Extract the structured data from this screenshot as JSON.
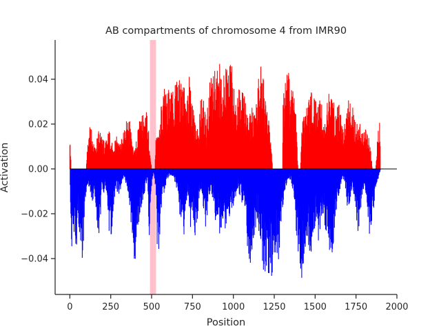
{
  "chart_data": {
    "type": "bar",
    "title": "AB compartments of chromosome 4 from IMR90",
    "xlabel": "Position",
    "ylabel": "Activation",
    "xlim": [
      -90,
      2000
    ],
    "ylim": [
      -0.056,
      0.0575
    ],
    "x_ticks": [
      0,
      250,
      500,
      750,
      1000,
      1250,
      1500,
      1750,
      2000
    ],
    "y_ticks": [
      -0.04,
      -0.02,
      0.0,
      0.02,
      0.04
    ],
    "y_tick_labels": [
      "−0.04",
      "−0.02",
      "0.00",
      "0.02",
      "0.04"
    ],
    "grid": false,
    "legend": "none",
    "highlight_band": {
      "x_start": 490,
      "x_end": 527,
      "color": "#ffc0cb"
    },
    "zero_line": true,
    "series": [
      {
        "sign": "positive",
        "color": "#ff0000"
      },
      {
        "sign": "negative",
        "color": "#0000ff"
      }
    ],
    "profile_positive": [
      [
        0,
        0.019
      ],
      [
        8,
        0.0
      ],
      [
        100,
        0.0
      ],
      [
        105,
        0.009
      ],
      [
        115,
        0.013
      ],
      [
        125,
        0.021
      ],
      [
        140,
        0.016
      ],
      [
        160,
        0.012
      ],
      [
        180,
        0.02
      ],
      [
        200,
        0.014
      ],
      [
        220,
        0.012
      ],
      [
        235,
        0.018
      ],
      [
        250,
        0.015
      ],
      [
        265,
        0.009
      ],
      [
        280,
        0.016
      ],
      [
        295,
        0.014
      ],
      [
        310,
        0.011
      ],
      [
        325,
        0.018
      ],
      [
        340,
        0.02
      ],
      [
        360,
        0.025
      ],
      [
        380,
        0.013
      ],
      [
        395,
        0.008
      ],
      [
        410,
        0.014
      ],
      [
        425,
        0.023
      ],
      [
        445,
        0.025
      ],
      [
        460,
        0.029
      ],
      [
        475,
        0.024
      ],
      [
        488,
        0.012
      ],
      [
        500,
        0.0
      ],
      [
        520,
        0.0
      ],
      [
        530,
        0.023
      ],
      [
        545,
        0.015
      ],
      [
        560,
        0.03
      ],
      [
        580,
        0.039
      ],
      [
        600,
        0.036
      ],
      [
        620,
        0.034
      ],
      [
        640,
        0.041
      ],
      [
        660,
        0.042
      ],
      [
        680,
        0.04
      ],
      [
        700,
        0.037
      ],
      [
        715,
        0.032
      ],
      [
        730,
        0.043
      ],
      [
        745,
        0.03
      ],
      [
        760,
        0.025
      ],
      [
        775,
        0.02
      ],
      [
        790,
        0.024
      ],
      [
        805,
        0.035
      ],
      [
        820,
        0.03
      ],
      [
        835,
        0.02
      ],
      [
        850,
        0.036
      ],
      [
        865,
        0.045
      ],
      [
        880,
        0.043
      ],
      [
        895,
        0.047
      ],
      [
        910,
        0.05
      ],
      [
        925,
        0.046
      ],
      [
        940,
        0.044
      ],
      [
        955,
        0.051
      ],
      [
        970,
        0.045
      ],
      [
        985,
        0.052
      ],
      [
        1000,
        0.043
      ],
      [
        1015,
        0.032
      ],
      [
        1030,
        0.04
      ],
      [
        1045,
        0.034
      ],
      [
        1060,
        0.036
      ],
      [
        1075,
        0.03
      ],
      [
        1090,
        0.023
      ],
      [
        1105,
        0.026
      ],
      [
        1120,
        0.03
      ],
      [
        1135,
        0.026
      ],
      [
        1150,
        0.038
      ],
      [
        1165,
        0.048
      ],
      [
        1180,
        0.046
      ],
      [
        1195,
        0.034
      ],
      [
        1210,
        0.025
      ],
      [
        1225,
        0.02
      ],
      [
        1240,
        0.0
      ],
      [
        1300,
        0.0
      ],
      [
        1305,
        0.039
      ],
      [
        1320,
        0.042
      ],
      [
        1335,
        0.044
      ],
      [
        1350,
        0.038
      ],
      [
        1365,
        0.036
      ],
      [
        1380,
        0.03
      ],
      [
        1395,
        0.0
      ],
      [
        1410,
        0.0
      ],
      [
        1420,
        0.026
      ],
      [
        1435,
        0.023
      ],
      [
        1450,
        0.028
      ],
      [
        1465,
        0.032
      ],
      [
        1480,
        0.035
      ],
      [
        1495,
        0.033
      ],
      [
        1510,
        0.03
      ],
      [
        1525,
        0.036
      ],
      [
        1540,
        0.033
      ],
      [
        1555,
        0.02
      ],
      [
        1570,
        0.028
      ],
      [
        1585,
        0.034
      ],
      [
        1600,
        0.033
      ],
      [
        1615,
        0.03
      ],
      [
        1630,
        0.026
      ],
      [
        1645,
        0.032
      ],
      [
        1660,
        0.025
      ],
      [
        1675,
        0.02
      ],
      [
        1690,
        0.027
      ],
      [
        1705,
        0.031
      ],
      [
        1720,
        0.03
      ],
      [
        1735,
        0.026
      ],
      [
        1750,
        0.023
      ],
      [
        1765,
        0.02
      ],
      [
        1780,
        0.022
      ],
      [
        1795,
        0.016
      ],
      [
        1810,
        0.018
      ],
      [
        1825,
        0.015
      ],
      [
        1840,
        0.009
      ],
      [
        1850,
        0.0
      ],
      [
        1870,
        0.0
      ],
      [
        1880,
        0.015
      ],
      [
        1890,
        0.024
      ],
      [
        1895,
        0.026
      ],
      [
        1900,
        0.0
      ]
    ],
    "profile_negative": [
      [
        0,
        0.0
      ],
      [
        5,
        -0.02
      ],
      [
        10,
        -0.038
      ],
      [
        20,
        -0.039
      ],
      [
        30,
        -0.032
      ],
      [
        40,
        -0.038
      ],
      [
        50,
        -0.022
      ],
      [
        60,
        -0.033
      ],
      [
        70,
        -0.038
      ],
      [
        80,
        -0.043
      ],
      [
        90,
        -0.018
      ],
      [
        100,
        -0.012
      ],
      [
        110,
        -0.009
      ],
      [
        120,
        -0.008
      ],
      [
        140,
        -0.018
      ],
      [
        155,
        -0.013
      ],
      [
        165,
        -0.022
      ],
      [
        175,
        -0.032
      ],
      [
        185,
        -0.028
      ],
      [
        195,
        -0.008
      ],
      [
        205,
        -0.012
      ],
      [
        215,
        -0.009
      ],
      [
        225,
        -0.014
      ],
      [
        240,
        -0.033
      ],
      [
        255,
        -0.03
      ],
      [
        270,
        -0.015
      ],
      [
        285,
        -0.01
      ],
      [
        300,
        -0.012
      ],
      [
        315,
        -0.008
      ],
      [
        330,
        -0.003
      ],
      [
        345,
        -0.008
      ],
      [
        360,
        -0.012
      ],
      [
        375,
        -0.026
      ],
      [
        385,
        -0.033
      ],
      [
        395,
        -0.044
      ],
      [
        405,
        -0.042
      ],
      [
        415,
        -0.029
      ],
      [
        425,
        -0.025
      ],
      [
        435,
        -0.02
      ],
      [
        445,
        -0.016
      ],
      [
        455,
        -0.012
      ],
      [
        465,
        -0.008
      ],
      [
        475,
        -0.003
      ],
      [
        485,
        -0.033
      ],
      [
        495,
        -0.012
      ],
      [
        505,
        -0.004
      ],
      [
        515,
        -0.002
      ],
      [
        525,
        -0.01
      ],
      [
        535,
        -0.038
      ],
      [
        545,
        -0.039
      ],
      [
        555,
        -0.023
      ],
      [
        570,
        -0.013
      ],
      [
        590,
        -0.006
      ],
      [
        610,
        -0.003
      ],
      [
        630,
        -0.004
      ],
      [
        650,
        -0.008
      ],
      [
        665,
        -0.012
      ],
      [
        680,
        -0.031
      ],
      [
        695,
        -0.036
      ],
      [
        710,
        -0.02
      ],
      [
        725,
        -0.012
      ],
      [
        740,
        -0.03
      ],
      [
        755,
        -0.025
      ],
      [
        770,
        -0.032
      ],
      [
        785,
        -0.018
      ],
      [
        800,
        -0.01
      ],
      [
        815,
        -0.016
      ],
      [
        830,
        -0.028
      ],
      [
        845,
        -0.018
      ],
      [
        860,
        -0.009
      ],
      [
        875,
        -0.015
      ],
      [
        890,
        -0.024
      ],
      [
        905,
        -0.02
      ],
      [
        920,
        -0.032
      ],
      [
        935,
        -0.028
      ],
      [
        950,
        -0.03
      ],
      [
        965,
        -0.027
      ],
      [
        980,
        -0.022
      ],
      [
        995,
        -0.018
      ],
      [
        1010,
        -0.014
      ],
      [
        1025,
        -0.009
      ],
      [
        1040,
        -0.012
      ],
      [
        1055,
        -0.016
      ],
      [
        1070,
        -0.02
      ],
      [
        1085,
        -0.035
      ],
      [
        1100,
        -0.043
      ],
      [
        1115,
        -0.04
      ],
      [
        1130,
        -0.03
      ],
      [
        1145,
        -0.022
      ],
      [
        1160,
        -0.03
      ],
      [
        1175,
        -0.042
      ],
      [
        1190,
        -0.049
      ],
      [
        1205,
        -0.045
      ],
      [
        1220,
        -0.048
      ],
      [
        1235,
        -0.05
      ],
      [
        1250,
        -0.042
      ],
      [
        1265,
        -0.04
      ],
      [
        1280,
        -0.043
      ],
      [
        1295,
        -0.025
      ],
      [
        1310,
        -0.012
      ],
      [
        1325,
        -0.008
      ],
      [
        1340,
        -0.004
      ],
      [
        1355,
        -0.006
      ],
      [
        1370,
        -0.015
      ],
      [
        1385,
        -0.03
      ],
      [
        1400,
        -0.042
      ],
      [
        1415,
        -0.05
      ],
      [
        1430,
        -0.045
      ],
      [
        1445,
        -0.03
      ],
      [
        1460,
        -0.035
      ],
      [
        1475,
        -0.041
      ],
      [
        1490,
        -0.03
      ],
      [
        1505,
        -0.022
      ],
      [
        1520,
        -0.032
      ],
      [
        1535,
        -0.025
      ],
      [
        1550,
        -0.02
      ],
      [
        1565,
        -0.028
      ],
      [
        1580,
        -0.033
      ],
      [
        1595,
        -0.042
      ],
      [
        1610,
        -0.035
      ],
      [
        1625,
        -0.02
      ],
      [
        1640,
        -0.014
      ],
      [
        1655,
        -0.008
      ],
      [
        1670,
        -0.004
      ],
      [
        1685,
        -0.008
      ],
      [
        1700,
        -0.02
      ],
      [
        1715,
        -0.014
      ],
      [
        1730,
        -0.01
      ],
      [
        1745,
        -0.015
      ],
      [
        1760,
        -0.03
      ],
      [
        1775,
        -0.022
      ],
      [
        1790,
        -0.012
      ],
      [
        1805,
        -0.008
      ],
      [
        1815,
        -0.018
      ],
      [
        1825,
        -0.024
      ],
      [
        1835,
        -0.032
      ],
      [
        1845,
        -0.026
      ],
      [
        1855,
        -0.02
      ],
      [
        1865,
        -0.012
      ],
      [
        1875,
        -0.008
      ],
      [
        1885,
        -0.005
      ],
      [
        1893,
        -0.003
      ],
      [
        1900,
        0.0
      ]
    ]
  }
}
